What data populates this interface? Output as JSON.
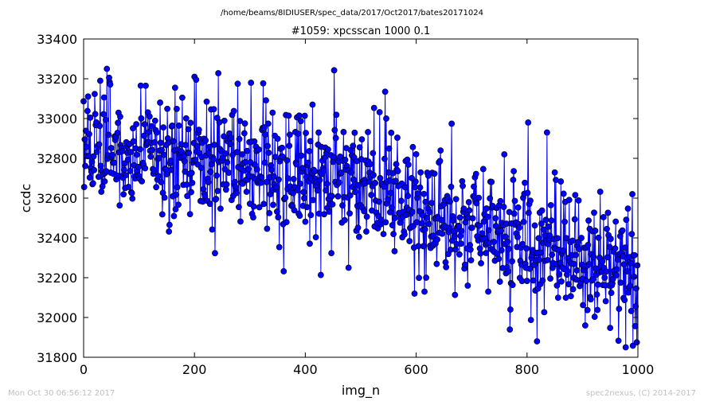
{
  "chart_data": {
    "type": "line",
    "suptitle": "/home/beams/8IDIUSER/spec_data/2017/Oct2017/bates20171024",
    "title": "#1059: xpcsscan 1000 0.1",
    "xlabel": "img_n",
    "ylabel": "ccdc",
    "xlim": [
      0,
      1000
    ],
    "ylim": [
      31800,
      33400
    ],
    "xticks": [
      0,
      200,
      400,
      600,
      800,
      1000
    ],
    "yticks": [
      31800,
      32000,
      32200,
      32400,
      32600,
      32800,
      33000,
      33200,
      33400
    ],
    "grid": false,
    "marker": "circle",
    "series_color": "#0000ff",
    "n_points": 1000,
    "trend": [
      {
        "x": 0,
        "y": 32820
      },
      {
        "x": 200,
        "y": 32800
      },
      {
        "x": 400,
        "y": 32720
      },
      {
        "x": 500,
        "y": 32650
      },
      {
        "x": 600,
        "y": 32550
      },
      {
        "x": 800,
        "y": 32380
      },
      {
        "x": 1000,
        "y": 32230
      }
    ],
    "noise_sd": 150,
    "notable_points": [
      {
        "x": 30,
        "y": 33190
      },
      {
        "x": 112,
        "y": 33165
      },
      {
        "x": 165,
        "y": 33155
      },
      {
        "x": 200,
        "y": 33210
      },
      {
        "x": 203,
        "y": 33195
      },
      {
        "x": 278,
        "y": 33175
      },
      {
        "x": 302,
        "y": 33180
      },
      {
        "x": 413,
        "y": 33070
      },
      {
        "x": 478,
        "y": 32250
      },
      {
        "x": 546,
        "y": 33000
      },
      {
        "x": 597,
        "y": 32120
      },
      {
        "x": 615,
        "y": 32130
      },
      {
        "x": 693,
        "y": 32160
      },
      {
        "x": 730,
        "y": 32130
      },
      {
        "x": 770,
        "y": 32040
      },
      {
        "x": 802,
        "y": 32980
      },
      {
        "x": 818,
        "y": 31880
      },
      {
        "x": 836,
        "y": 32930
      },
      {
        "x": 905,
        "y": 31960
      },
      {
        "x": 990,
        "y": 32620
      },
      {
        "x": 998,
        "y": 31875
      }
    ]
  },
  "footer": {
    "left": "Mon Oct 30 06:56:12 2017",
    "right": "spec2nexus, (C) 2014-2017"
  }
}
